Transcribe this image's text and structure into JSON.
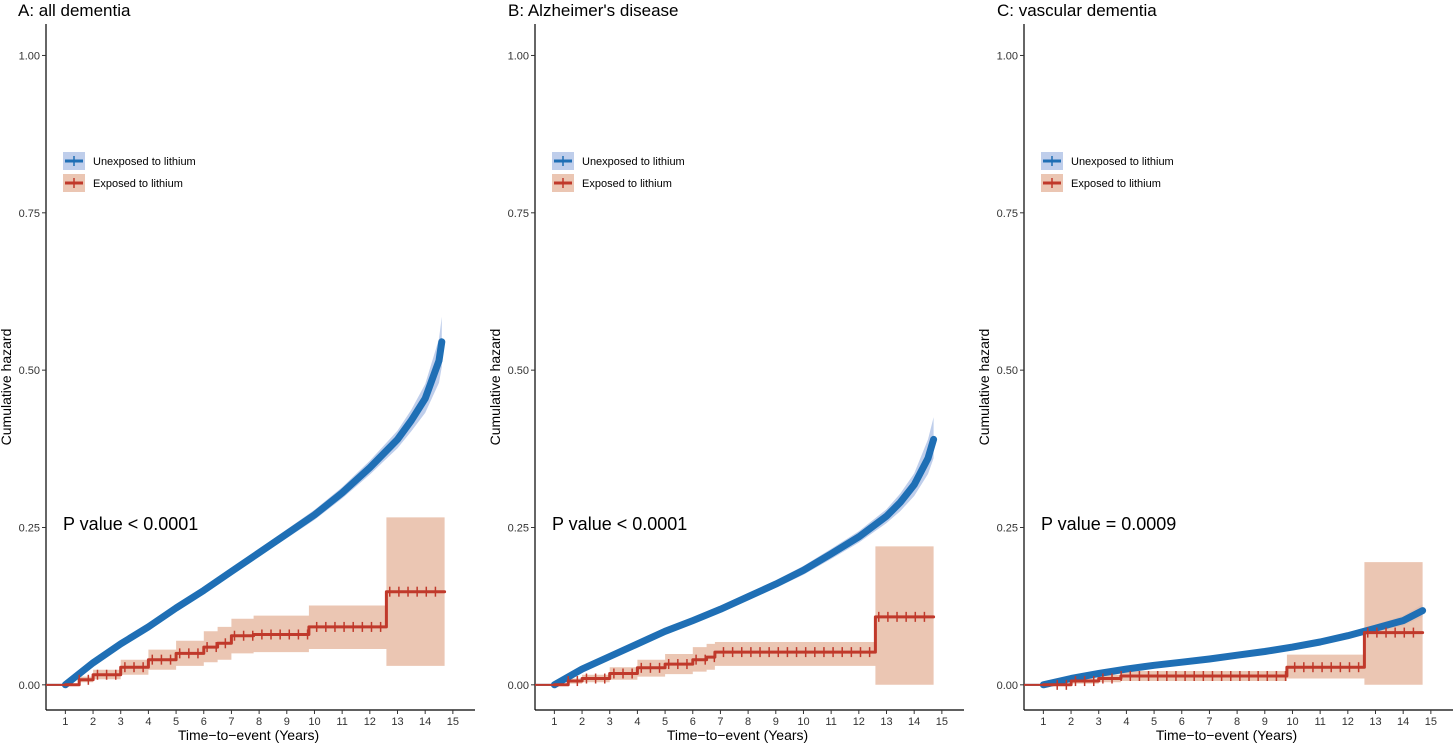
{
  "chart_data": [
    {
      "type": "line",
      "title": "A: all dementia",
      "xlabel": "Time−to−event (Years)",
      "ylabel": "Cumulative hazard",
      "xlim": [
        0.3,
        15.8
      ],
      "ylim": [
        -0.04,
        1.05
      ],
      "x_ticks": [
        1,
        2,
        3,
        4,
        5,
        6,
        7,
        8,
        9,
        10,
        11,
        12,
        13,
        14,
        15
      ],
      "y_ticks": [
        0.0,
        0.25,
        0.5,
        0.75,
        1.0
      ],
      "y_tick_labels": [
        "0.00",
        "0.25",
        "0.50",
        "0.75",
        "1.00"
      ],
      "annotation": "P value < 0.0001",
      "legend": [
        "Unexposed to lithium",
        "Exposed to lithium"
      ],
      "series": [
        {
          "name": "Unexposed to lithium",
          "color": "#1f6fb5",
          "band_color": "#b4c6e7",
          "x": [
            1,
            2,
            3,
            4,
            5,
            6,
            7,
            8,
            9,
            10,
            11,
            12,
            13,
            13.5,
            14,
            14.5,
            14.6
          ],
          "y": [
            0.0,
            0.035,
            0.065,
            0.092,
            0.122,
            0.15,
            0.18,
            0.21,
            0.24,
            0.27,
            0.305,
            0.345,
            0.39,
            0.42,
            0.455,
            0.515,
            0.545
          ],
          "band_lower": [
            0.0,
            0.033,
            0.062,
            0.089,
            0.118,
            0.146,
            0.175,
            0.204,
            0.233,
            0.262,
            0.296,
            0.334,
            0.376,
            0.403,
            0.432,
            0.48,
            0.505
          ],
          "band_upper": [
            0.0,
            0.037,
            0.068,
            0.095,
            0.126,
            0.154,
            0.185,
            0.216,
            0.247,
            0.278,
            0.314,
            0.356,
            0.404,
            0.437,
            0.478,
            0.55,
            0.585
          ]
        },
        {
          "name": "Exposed to lithium",
          "color": "#c0392b",
          "band_color": "#e8bca6",
          "x": [
            1,
            1.5,
            2,
            3,
            4,
            5,
            6,
            6.5,
            7,
            7.8,
            9.8,
            12.6,
            12.6,
            14.7
          ],
          "y": [
            0.0,
            0.008,
            0.016,
            0.028,
            0.04,
            0.05,
            0.06,
            0.066,
            0.078,
            0.08,
            0.092,
            0.092,
            0.148,
            0.148
          ],
          "band_lower": [
            0.0,
            0.004,
            0.009,
            0.016,
            0.024,
            0.03,
            0.036,
            0.04,
            0.05,
            0.052,
            0.057,
            0.057,
            0.03,
            0.03
          ],
          "band_upper": [
            0.0,
            0.013,
            0.024,
            0.04,
            0.056,
            0.07,
            0.085,
            0.092,
            0.105,
            0.11,
            0.126,
            0.126,
            0.266,
            0.266
          ]
        }
      ]
    },
    {
      "type": "line",
      "title": "B: Alzheimer's disease",
      "xlabel": "Time−to−event (Years)",
      "ylabel": "Cumulative hazard",
      "xlim": [
        0.3,
        15.8
      ],
      "ylim": [
        -0.04,
        1.05
      ],
      "x_ticks": [
        1,
        2,
        3,
        4,
        5,
        6,
        7,
        8,
        9,
        10,
        11,
        12,
        13,
        14,
        15
      ],
      "y_ticks": [
        0.0,
        0.25,
        0.5,
        0.75,
        1.0
      ],
      "y_tick_labels": [
        "0.00",
        "0.25",
        "0.50",
        "0.75",
        "1.00"
      ],
      "annotation": "P value < 0.0001",
      "legend": [
        "Unexposed to lithium",
        "Exposed to lithium"
      ],
      "series": [
        {
          "name": "Unexposed to lithium",
          "color": "#1f6fb5",
          "band_color": "#b4c6e7",
          "x": [
            1,
            2,
            3,
            4,
            5,
            6,
            7,
            8,
            9,
            10,
            11,
            12,
            13,
            13.5,
            14,
            14.5,
            14.7
          ],
          "y": [
            0.0,
            0.025,
            0.045,
            0.065,
            0.085,
            0.102,
            0.12,
            0.14,
            0.16,
            0.182,
            0.208,
            0.235,
            0.268,
            0.29,
            0.318,
            0.36,
            0.39
          ],
          "band_lower": [
            0.0,
            0.023,
            0.042,
            0.062,
            0.081,
            0.098,
            0.115,
            0.134,
            0.154,
            0.175,
            0.2,
            0.226,
            0.257,
            0.276,
            0.3,
            0.335,
            0.36
          ],
          "band_upper": [
            0.0,
            0.027,
            0.048,
            0.068,
            0.089,
            0.106,
            0.125,
            0.146,
            0.166,
            0.189,
            0.216,
            0.244,
            0.279,
            0.304,
            0.336,
            0.39,
            0.425
          ]
        },
        {
          "name": "Exposed to lithium",
          "color": "#c0392b",
          "band_color": "#e8bca6",
          "x": [
            1,
            1.5,
            2,
            3,
            4,
            5,
            6,
            6.5,
            6.8,
            12.6,
            12.6,
            14.7
          ],
          "y": [
            0.0,
            0.006,
            0.01,
            0.018,
            0.027,
            0.033,
            0.04,
            0.044,
            0.052,
            0.052,
            0.108,
            0.108
          ],
          "band_lower": [
            0.0,
            0.002,
            0.004,
            0.008,
            0.013,
            0.017,
            0.021,
            0.024,
            0.03,
            0.03,
            0.0,
            0.0
          ],
          "band_upper": [
            0.0,
            0.01,
            0.016,
            0.028,
            0.04,
            0.049,
            0.06,
            0.065,
            0.068,
            0.068,
            0.22,
            0.22
          ]
        }
      ]
    },
    {
      "type": "line",
      "title": "C: vascular dementia",
      "xlabel": "Time−to−event (Years)",
      "ylabel": "Cumulative hazard",
      "xlim": [
        0.3,
        15.8
      ],
      "ylim": [
        -0.04,
        1.05
      ],
      "x_ticks": [
        1,
        2,
        3,
        4,
        5,
        6,
        7,
        8,
        9,
        10,
        11,
        12,
        13,
        14,
        15
      ],
      "y_ticks": [
        0.0,
        0.25,
        0.5,
        0.75,
        1.0
      ],
      "y_tick_labels": [
        "0.00",
        "0.25",
        "0.50",
        "0.75",
        "1.00"
      ],
      "annotation": "P value = 0.0009",
      "legend": [
        "Unexposed to lithium",
        "Exposed to lithium"
      ],
      "series": [
        {
          "name": "Unexposed to lithium",
          "color": "#1f6fb5",
          "band_color": "#b4c6e7",
          "x": [
            1,
            2,
            3,
            4,
            5,
            6,
            7,
            8,
            9,
            10,
            11,
            12,
            13,
            14,
            14.7
          ],
          "y": [
            0.0,
            0.01,
            0.018,
            0.025,
            0.031,
            0.036,
            0.041,
            0.047,
            0.053,
            0.06,
            0.068,
            0.078,
            0.09,
            0.102,
            0.118
          ],
          "band_lower": [
            0.0,
            0.009,
            0.016,
            0.023,
            0.029,
            0.034,
            0.039,
            0.044,
            0.05,
            0.056,
            0.064,
            0.073,
            0.084,
            0.094,
            0.108
          ],
          "band_upper": [
            0.0,
            0.011,
            0.02,
            0.027,
            0.033,
            0.038,
            0.043,
            0.05,
            0.056,
            0.064,
            0.072,
            0.083,
            0.096,
            0.11,
            0.128
          ]
        },
        {
          "name": "Exposed to lithium",
          "color": "#c0392b",
          "band_color": "#e8bca6",
          "x": [
            1,
            2,
            3,
            3.8,
            9.8,
            9.8,
            12.6,
            12.6,
            14.7
          ],
          "y": [
            0.0,
            0.006,
            0.01,
            0.014,
            0.014,
            0.028,
            0.028,
            0.083,
            0.083
          ],
          "band_lower": [
            0.0,
            0.002,
            0.004,
            0.006,
            0.006,
            0.01,
            0.01,
            0.0,
            0.0
          ],
          "band_upper": [
            0.0,
            0.01,
            0.016,
            0.022,
            0.022,
            0.048,
            0.048,
            0.195,
            0.195
          ]
        }
      ]
    }
  ]
}
